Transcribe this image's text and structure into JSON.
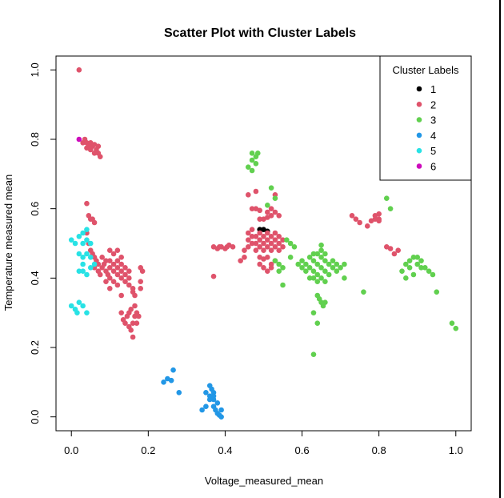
{
  "chart_data": {
    "type": "scatter",
    "title": "Scatter Plot with Cluster Labels",
    "xlabel": "Voltage_measured_mean",
    "ylabel": "Temperature measured mean",
    "xlim": [
      -0.04,
      1.04
    ],
    "ylim": [
      -0.04,
      1.04
    ],
    "x_ticks": [
      "0.0",
      "0.2",
      "0.4",
      "0.6",
      "0.8",
      "1.0"
    ],
    "y_ticks": [
      "0.0",
      "0.2",
      "0.4",
      "0.6",
      "0.8",
      "1.0"
    ],
    "grid": false,
    "legend": {
      "title": "Cluster Labels",
      "placement": "top-right",
      "entries": [
        {
          "label": "1",
          "color": "#000000"
        },
        {
          "label": "2",
          "color": "#DF536B"
        },
        {
          "label": "3",
          "color": "#61D04F"
        },
        {
          "label": "4",
          "color": "#2297E6"
        },
        {
          "label": "5",
          "color": "#28E2E5"
        },
        {
          "label": "6",
          "color": "#CD0BBC"
        }
      ]
    },
    "series": [
      {
        "name": "1",
        "color": "#000000",
        "points": [
          [
            0.49,
            0.54
          ],
          [
            0.5,
            0.54
          ],
          [
            0.51,
            0.535
          ]
        ]
      },
      {
        "name": "2",
        "color": "#DF536B",
        "points": [
          [
            0.02,
            1.0
          ],
          [
            0.03,
            0.79
          ],
          [
            0.035,
            0.8
          ],
          [
            0.04,
            0.79
          ],
          [
            0.045,
            0.78
          ],
          [
            0.05,
            0.79
          ],
          [
            0.055,
            0.78
          ],
          [
            0.06,
            0.785
          ],
          [
            0.065,
            0.77
          ],
          [
            0.07,
            0.78
          ],
          [
            0.06,
            0.76
          ],
          [
            0.07,
            0.76
          ],
          [
            0.075,
            0.75
          ],
          [
            0.04,
            0.775
          ],
          [
            0.05,
            0.77
          ],
          [
            0.04,
            0.615
          ],
          [
            0.045,
            0.58
          ],
          [
            0.05,
            0.57
          ],
          [
            0.06,
            0.56
          ],
          [
            0.055,
            0.57
          ],
          [
            0.04,
            0.53
          ],
          [
            0.045,
            0.5
          ],
          [
            0.05,
            0.48
          ],
          [
            0.055,
            0.47
          ],
          [
            0.06,
            0.46
          ],
          [
            0.065,
            0.45
          ],
          [
            0.07,
            0.44
          ],
          [
            0.06,
            0.43
          ],
          [
            0.07,
            0.42
          ],
          [
            0.075,
            0.41
          ],
          [
            0.08,
            0.43
          ],
          [
            0.085,
            0.44
          ],
          [
            0.09,
            0.45
          ],
          [
            0.08,
            0.46
          ],
          [
            0.09,
            0.42
          ],
          [
            0.095,
            0.41
          ],
          [
            0.1,
            0.43
          ],
          [
            0.1,
            0.45
          ],
          [
            0.11,
            0.44
          ],
          [
            0.11,
            0.42
          ],
          [
            0.12,
            0.41
          ],
          [
            0.12,
            0.43
          ],
          [
            0.12,
            0.45
          ],
          [
            0.13,
            0.44
          ],
          [
            0.13,
            0.42
          ],
          [
            0.13,
            0.46
          ],
          [
            0.11,
            0.47
          ],
          [
            0.1,
            0.48
          ],
          [
            0.12,
            0.48
          ],
          [
            0.14,
            0.43
          ],
          [
            0.14,
            0.41
          ],
          [
            0.14,
            0.39
          ],
          [
            0.15,
            0.4
          ],
          [
            0.15,
            0.38
          ],
          [
            0.15,
            0.42
          ],
          [
            0.16,
            0.37
          ],
          [
            0.16,
            0.36
          ],
          [
            0.165,
            0.35
          ],
          [
            0.13,
            0.4
          ],
          [
            0.1,
            0.4
          ],
          [
            0.09,
            0.39
          ],
          [
            0.11,
            0.39
          ],
          [
            0.1,
            0.37
          ],
          [
            0.12,
            0.38
          ],
          [
            0.18,
            0.43
          ],
          [
            0.185,
            0.42
          ],
          [
            0.18,
            0.39
          ],
          [
            0.18,
            0.37
          ],
          [
            0.13,
            0.35
          ],
          [
            0.13,
            0.3
          ],
          [
            0.135,
            0.28
          ],
          [
            0.14,
            0.27
          ],
          [
            0.145,
            0.29
          ],
          [
            0.15,
            0.3
          ],
          [
            0.15,
            0.26
          ],
          [
            0.155,
            0.25
          ],
          [
            0.16,
            0.23
          ],
          [
            0.16,
            0.27
          ],
          [
            0.165,
            0.29
          ],
          [
            0.17,
            0.3
          ],
          [
            0.17,
            0.27
          ],
          [
            0.175,
            0.29
          ],
          [
            0.165,
            0.32
          ],
          [
            0.155,
            0.31
          ],
          [
            0.37,
            0.405
          ],
          [
            0.37,
            0.49
          ],
          [
            0.38,
            0.485
          ],
          [
            0.385,
            0.49
          ],
          [
            0.39,
            0.49
          ],
          [
            0.4,
            0.485
          ],
          [
            0.405,
            0.49
          ],
          [
            0.41,
            0.495
          ],
          [
            0.42,
            0.49
          ],
          [
            0.44,
            0.45
          ],
          [
            0.45,
            0.46
          ],
          [
            0.45,
            0.48
          ],
          [
            0.46,
            0.49
          ],
          [
            0.46,
            0.51
          ],
          [
            0.46,
            0.53
          ],
          [
            0.47,
            0.5
          ],
          [
            0.47,
            0.52
          ],
          [
            0.47,
            0.54
          ],
          [
            0.48,
            0.48
          ],
          [
            0.48,
            0.5
          ],
          [
            0.48,
            0.52
          ],
          [
            0.49,
            0.49
          ],
          [
            0.49,
            0.51
          ],
          [
            0.49,
            0.53
          ],
          [
            0.5,
            0.48
          ],
          [
            0.5,
            0.5
          ],
          [
            0.5,
            0.52
          ],
          [
            0.51,
            0.49
          ],
          [
            0.51,
            0.51
          ],
          [
            0.51,
            0.53
          ],
          [
            0.52,
            0.48
          ],
          [
            0.52,
            0.5
          ],
          [
            0.52,
            0.52
          ],
          [
            0.53,
            0.49
          ],
          [
            0.53,
            0.51
          ],
          [
            0.53,
            0.53
          ],
          [
            0.54,
            0.48
          ],
          [
            0.54,
            0.5
          ],
          [
            0.54,
            0.52
          ],
          [
            0.55,
            0.49
          ],
          [
            0.55,
            0.51
          ],
          [
            0.49,
            0.46
          ],
          [
            0.5,
            0.455
          ],
          [
            0.51,
            0.46
          ],
          [
            0.49,
            0.44
          ],
          [
            0.5,
            0.43
          ],
          [
            0.51,
            0.42
          ],
          [
            0.52,
            0.44
          ],
          [
            0.53,
            0.45
          ],
          [
            0.52,
            0.43
          ],
          [
            0.47,
            0.6
          ],
          [
            0.48,
            0.6
          ],
          [
            0.49,
            0.595
          ],
          [
            0.5,
            0.57
          ],
          [
            0.49,
            0.57
          ],
          [
            0.51,
            0.575
          ],
          [
            0.52,
            0.58
          ],
          [
            0.54,
            0.58
          ],
          [
            0.53,
            0.59
          ],
          [
            0.51,
            0.59
          ],
          [
            0.46,
            0.64
          ],
          [
            0.48,
            0.65
          ],
          [
            0.53,
            0.64
          ],
          [
            0.52,
            0.6
          ],
          [
            0.73,
            0.58
          ],
          [
            0.74,
            0.57
          ],
          [
            0.75,
            0.56
          ],
          [
            0.77,
            0.55
          ],
          [
            0.78,
            0.565
          ],
          [
            0.79,
            0.58
          ],
          [
            0.8,
            0.585
          ],
          [
            0.8,
            0.57
          ],
          [
            0.79,
            0.57
          ],
          [
            0.8,
            0.565
          ],
          [
            0.82,
            0.49
          ],
          [
            0.83,
            0.485
          ],
          [
            0.84,
            0.47
          ],
          [
            0.85,
            0.48
          ]
        ]
      },
      {
        "name": "3",
        "color": "#61D04F",
        "points": [
          [
            0.47,
            0.76
          ],
          [
            0.48,
            0.75
          ],
          [
            0.485,
            0.76
          ],
          [
            0.47,
            0.74
          ],
          [
            0.46,
            0.72
          ],
          [
            0.47,
            0.71
          ],
          [
            0.48,
            0.73
          ],
          [
            0.52,
            0.66
          ],
          [
            0.53,
            0.63
          ],
          [
            0.51,
            0.61
          ],
          [
            0.53,
            0.45
          ],
          [
            0.54,
            0.44
          ],
          [
            0.55,
            0.43
          ],
          [
            0.55,
            0.38
          ],
          [
            0.54,
            0.42
          ],
          [
            0.56,
            0.51
          ],
          [
            0.57,
            0.5
          ],
          [
            0.58,
            0.49
          ],
          [
            0.57,
            0.46
          ],
          [
            0.59,
            0.44
          ],
          [
            0.6,
            0.45
          ],
          [
            0.61,
            0.44
          ],
          [
            0.62,
            0.43
          ],
          [
            0.63,
            0.45
          ],
          [
            0.64,
            0.44
          ],
          [
            0.65,
            0.43
          ],
          [
            0.66,
            0.45
          ],
          [
            0.67,
            0.44
          ],
          [
            0.68,
            0.43
          ],
          [
            0.69,
            0.44
          ],
          [
            0.6,
            0.43
          ],
          [
            0.61,
            0.42
          ],
          [
            0.62,
            0.46
          ],
          [
            0.63,
            0.42
          ],
          [
            0.64,
            0.41
          ],
          [
            0.65,
            0.46
          ],
          [
            0.66,
            0.42
          ],
          [
            0.67,
            0.41
          ],
          [
            0.68,
            0.45
          ],
          [
            0.69,
            0.42
          ],
          [
            0.62,
            0.4
          ],
          [
            0.63,
            0.4
          ],
          [
            0.64,
            0.39
          ],
          [
            0.65,
            0.4
          ],
          [
            0.66,
            0.39
          ],
          [
            0.63,
            0.47
          ],
          [
            0.64,
            0.47
          ],
          [
            0.65,
            0.48
          ],
          [
            0.7,
            0.43
          ],
          [
            0.71,
            0.44
          ],
          [
            0.65,
            0.495
          ],
          [
            0.66,
            0.47
          ],
          [
            0.71,
            0.4
          ],
          [
            0.76,
            0.36
          ],
          [
            0.64,
            0.35
          ],
          [
            0.645,
            0.34
          ],
          [
            0.65,
            0.33
          ],
          [
            0.66,
            0.33
          ],
          [
            0.655,
            0.32
          ],
          [
            0.63,
            0.3
          ],
          [
            0.64,
            0.27
          ],
          [
            0.63,
            0.18
          ],
          [
            0.82,
            0.63
          ],
          [
            0.83,
            0.6
          ],
          [
            0.86,
            0.42
          ],
          [
            0.87,
            0.44
          ],
          [
            0.88,
            0.45
          ],
          [
            0.89,
            0.46
          ],
          [
            0.9,
            0.44
          ],
          [
            0.91,
            0.45
          ],
          [
            0.92,
            0.43
          ],
          [
            0.9,
            0.46
          ],
          [
            0.91,
            0.43
          ],
          [
            0.88,
            0.43
          ],
          [
            0.89,
            0.41
          ],
          [
            0.87,
            0.4
          ],
          [
            0.93,
            0.42
          ],
          [
            0.94,
            0.41
          ],
          [
            0.95,
            0.36
          ],
          [
            0.99,
            0.27
          ],
          [
            1.0,
            0.255
          ]
        ]
      },
      {
        "name": "4",
        "color": "#2297E6",
        "points": [
          [
            0.24,
            0.1
          ],
          [
            0.25,
            0.11
          ],
          [
            0.26,
            0.105
          ],
          [
            0.265,
            0.135
          ],
          [
            0.28,
            0.07
          ],
          [
            0.34,
            0.02
          ],
          [
            0.35,
            0.03
          ],
          [
            0.35,
            0.07
          ],
          [
            0.36,
            0.06
          ],
          [
            0.36,
            0.09
          ],
          [
            0.365,
            0.08
          ],
          [
            0.37,
            0.07
          ],
          [
            0.37,
            0.05
          ],
          [
            0.37,
            0.03
          ],
          [
            0.375,
            0.02
          ],
          [
            0.38,
            0.04
          ],
          [
            0.38,
            0.01
          ],
          [
            0.385,
            0.005
          ],
          [
            0.39,
            0.02
          ],
          [
            0.39,
            0.0
          ],
          [
            0.36,
            0.05
          ],
          [
            0.37,
            0.06
          ]
        ]
      },
      {
        "name": "5",
        "color": "#28E2E5",
        "points": [
          [
            0.0,
            0.51
          ],
          [
            0.01,
            0.5
          ],
          [
            0.02,
            0.52
          ],
          [
            0.03,
            0.53
          ],
          [
            0.04,
            0.54
          ],
          [
            0.03,
            0.5
          ],
          [
            0.04,
            0.51
          ],
          [
            0.05,
            0.5
          ],
          [
            0.02,
            0.47
          ],
          [
            0.03,
            0.46
          ],
          [
            0.04,
            0.47
          ],
          [
            0.03,
            0.44
          ],
          [
            0.02,
            0.42
          ],
          [
            0.03,
            0.42
          ],
          [
            0.04,
            0.41
          ],
          [
            0.05,
            0.43
          ],
          [
            0.06,
            0.44
          ],
          [
            0.05,
            0.46
          ],
          [
            0.0,
            0.32
          ],
          [
            0.01,
            0.31
          ],
          [
            0.02,
            0.33
          ],
          [
            0.03,
            0.32
          ],
          [
            0.015,
            0.3
          ],
          [
            0.04,
            0.3
          ]
        ]
      },
      {
        "name": "6",
        "color": "#CD0BBC",
        "points": [
          [
            0.02,
            0.8
          ]
        ]
      }
    ]
  }
}
